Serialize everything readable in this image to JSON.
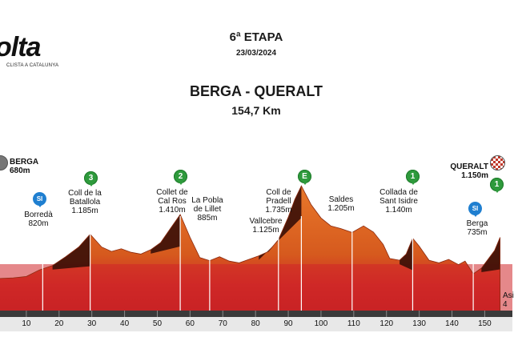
{
  "header": {
    "stage_label": "6ª ETAPA",
    "date": "23/03/2024",
    "route": "BERGA - QUERALT",
    "distance": "154,7 Km"
  },
  "logo": {
    "text": "olta",
    "subtitle": "CLISTA A CATALUNYA"
  },
  "colors": {
    "profile_red": "#d42a2a",
    "profile_orange": "#e06a1e",
    "climb_dark": "#3a0f08",
    "axis_bar": "#3a3a3a",
    "green_badge": "#2e9a3c",
    "blue_badge": "#1f7fd0"
  },
  "axis": {
    "ticks": [
      "10",
      "20",
      "30",
      "40",
      "50",
      "60",
      "70",
      "80",
      "90",
      "100",
      "110",
      "120",
      "130",
      "140",
      "150"
    ],
    "km_min": 0,
    "km_max": 154.7
  },
  "start": {
    "name": "BERGA",
    "elevation": "680m"
  },
  "finish": {
    "name": "QUERALT",
    "elevation": "1.150m"
  },
  "points": [
    {
      "name": "Borredà",
      "elevation": "820m",
      "km": 15,
      "badge": "SI"
    },
    {
      "name": "Coll de la Batallola",
      "elevation": "1.185m",
      "km": 29.5,
      "badge": "3"
    },
    {
      "name": "Collet de Cal Ros",
      "elevation": "1.410m",
      "km": 57,
      "badge": "2"
    },
    {
      "name": "La Pobla de Lillet",
      "elevation": "885m",
      "km": 66
    },
    {
      "name": "Vallcebre",
      "elevation": "1.125m",
      "km": 87
    },
    {
      "name": "Coll de Pradell",
      "elevation": "1.735m",
      "km": 94,
      "badge": "E"
    },
    {
      "name": "Saldes",
      "elevation": "1.205m",
      "km": 109.5
    },
    {
      "name": "Collada de Sant Isidre",
      "elevation": "1.140m",
      "km": 128,
      "badge": "1"
    },
    {
      "name": "Berga",
      "elevation": "735m",
      "km": 146.5,
      "badge": "SI"
    }
  ],
  "finish_badge": "1",
  "profile_km": [
    0,
    6,
    10,
    14,
    18,
    22,
    26,
    29.5,
    33,
    36,
    39,
    42,
    45,
    48,
    51,
    54,
    57,
    60,
    63,
    66,
    69,
    72,
    75,
    78,
    81,
    84,
    87,
    90,
    92,
    94,
    97,
    100,
    103,
    106,
    109.5,
    113,
    116,
    119,
    121,
    124,
    126,
    128,
    130,
    133,
    136,
    139,
    142,
    144,
    146.5,
    149,
    151,
    153,
    154.7
  ],
  "profile_alt": [
    680,
    690,
    705,
    780,
    830,
    930,
    1040,
    1185,
    1040,
    990,
    1020,
    980,
    960,
    1010,
    1090,
    1250,
    1410,
    1150,
    920,
    885,
    930,
    880,
    860,
    900,
    940,
    990,
    1125,
    1380,
    1580,
    1735,
    1520,
    1370,
    1280,
    1250,
    1205,
    1280,
    1210,
    1070,
    910,
    890,
    960,
    1140,
    1050,
    890,
    860,
    900,
    840,
    880,
    735,
    800,
    900,
    1000,
    1150
  ],
  "left_cut": {
    "name": "Asi",
    "elevation": "4"
  }
}
